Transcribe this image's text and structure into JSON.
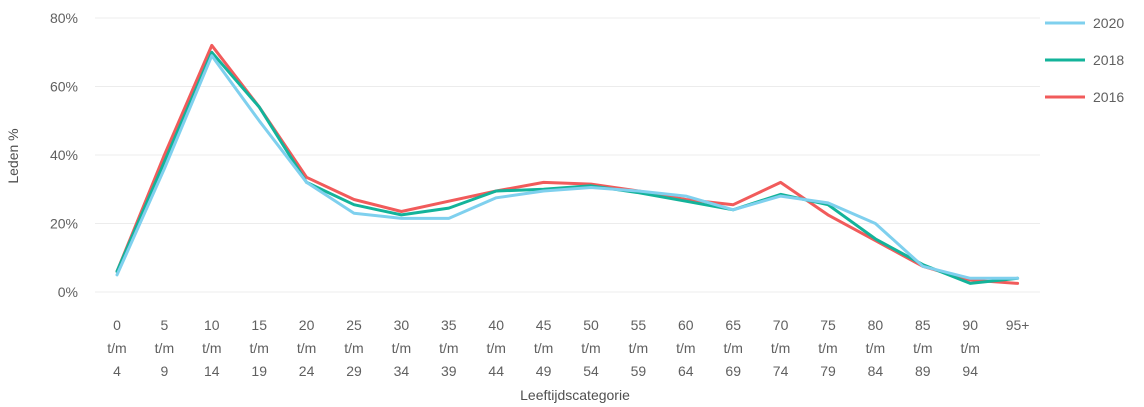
{
  "chart_data": {
    "type": "line",
    "xlabel": "Leeftijdscategorie",
    "ylabel": "Leden %",
    "ylim": [
      0,
      80
    ],
    "yticks": [
      "0%",
      "20%",
      "40%",
      "60%",
      "80%"
    ],
    "grid": true,
    "legend_position": "top-right",
    "categories": [
      [
        "0",
        "t/m",
        "4"
      ],
      [
        "5",
        "t/m",
        "9"
      ],
      [
        "10",
        "t/m",
        "14"
      ],
      [
        "15",
        "t/m",
        "19"
      ],
      [
        "20",
        "t/m",
        "24"
      ],
      [
        "25",
        "t/m",
        "29"
      ],
      [
        "30",
        "t/m",
        "34"
      ],
      [
        "35",
        "t/m",
        "39"
      ],
      [
        "40",
        "t/m",
        "44"
      ],
      [
        "45",
        "t/m",
        "49"
      ],
      [
        "50",
        "t/m",
        "54"
      ],
      [
        "55",
        "t/m",
        "59"
      ],
      [
        "60",
        "t/m",
        "64"
      ],
      [
        "65",
        "t/m",
        "69"
      ],
      [
        "70",
        "t/m",
        "74"
      ],
      [
        "75",
        "t/m",
        "79"
      ],
      [
        "80",
        "t/m",
        "84"
      ],
      [
        "85",
        "t/m",
        "89"
      ],
      [
        "90",
        "t/m",
        "94"
      ],
      [
        "95+"
      ]
    ],
    "series": [
      {
        "name": "2020",
        "color": "#7fd0ee",
        "values": [
          5,
          36,
          69,
          50,
          32,
          23,
          21.5,
          21.5,
          27.5,
          29.5,
          30.5,
          29.5,
          28,
          24,
          28,
          26,
          20,
          7.5,
          4,
          4
        ]
      },
      {
        "name": "2018",
        "color": "#13b39a",
        "values": [
          6,
          38,
          70,
          54,
          32,
          25.5,
          22.5,
          24.5,
          29.5,
          30,
          31,
          29,
          26.5,
          24,
          28.5,
          25.5,
          15.5,
          8,
          2.5,
          4
        ]
      },
      {
        "name": "2016",
        "color": "#f15b5b",
        "values": [
          6,
          40,
          72,
          54,
          33.5,
          27,
          23.5,
          26.5,
          29.5,
          32,
          31.5,
          29.5,
          27,
          25.5,
          32,
          22.5,
          15,
          7.5,
          3.5,
          2.5
        ]
      }
    ]
  }
}
